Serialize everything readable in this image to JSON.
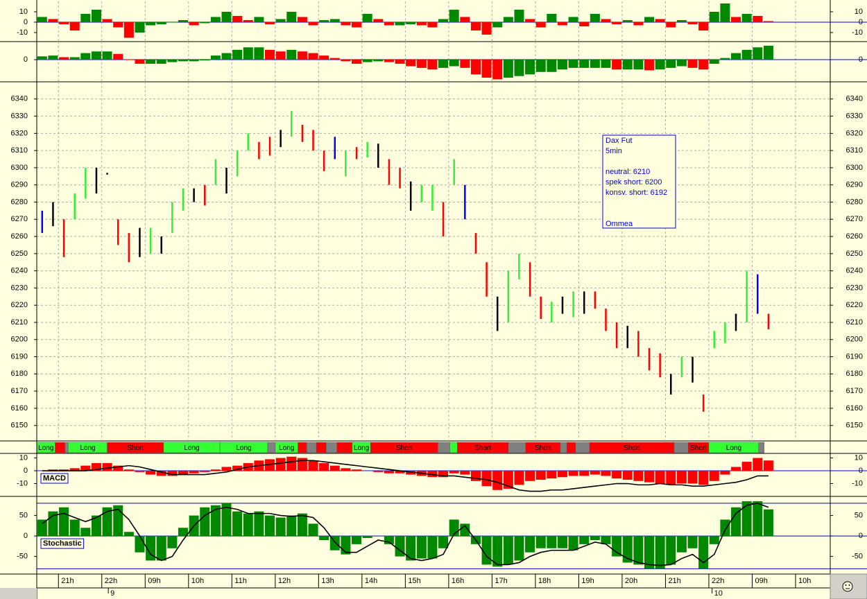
{
  "chart_data": [
    {
      "type": "histogram",
      "ylim": [
        -18.7,
        20
      ],
      "yticks": [
        10,
        0,
        -10
      ],
      "ref_lines": [
        0
      ],
      "grid": true,
      "up_color": "#008800",
      "down_color": "#ff0000",
      "values": [
        5,
        3,
        -2,
        -8,
        8,
        12,
        3,
        -5,
        -15,
        -10,
        -3,
        -2,
        0,
        2,
        -3,
        -1,
        5,
        10,
        6,
        2,
        5,
        -2,
        3,
        10,
        5,
        -3,
        2,
        3,
        -3,
        -5,
        8,
        3,
        -3,
        -3,
        -2,
        -3,
        -5,
        3,
        12,
        5,
        -8,
        -12,
        -5,
        5,
        12,
        3,
        -5,
        8,
        -3,
        5,
        -4,
        8,
        3,
        -2,
        2,
        -3,
        5,
        3,
        -5,
        2,
        -2,
        -8,
        10,
        18,
        5,
        8,
        6,
        1
      ]
    },
    {
      "type": "histogram",
      "ylim": [
        -27,
        22
      ],
      "yticks": [
        0
      ],
      "ref_lines": [
        0
      ],
      "grid": true,
      "up_color": "#008800",
      "down_color": "#ff0000",
      "values": [
        4,
        5,
        3,
        3,
        8,
        10,
        10,
        7,
        0,
        -5,
        -5,
        -5,
        -3,
        -2,
        -2,
        -1,
        5,
        8,
        12,
        15,
        15,
        12,
        10,
        12,
        10,
        8,
        5,
        2,
        -2,
        -5,
        -3,
        -2,
        -3,
        -5,
        -8,
        -10,
        -12,
        -10,
        -8,
        -10,
        -18,
        -22,
        -24,
        -22,
        -20,
        -18,
        -15,
        -15,
        -12,
        -10,
        -10,
        -10,
        -10,
        -12,
        -12,
        -12,
        -13,
        -12,
        -10,
        -8,
        -10,
        -12,
        -5,
        2,
        8,
        12,
        15,
        17
      ]
    },
    {
      "type": "ohlc",
      "ylim": [
        6141,
        6350
      ],
      "yticks": [
        6150,
        6160,
        6170,
        6180,
        6190,
        6200,
        6210,
        6220,
        6230,
        6240,
        6250,
        6260,
        6270,
        6280,
        6290,
        6300,
        6310,
        6320,
        6330,
        6340
      ],
      "grid": true,
      "highs": [
        6275,
        6280,
        6270,
        6285,
        6300,
        6300,
        6297,
        6270,
        6262,
        6265,
        6265,
        6260,
        6280,
        6288,
        6288,
        6290,
        6305,
        6300,
        6310,
        6320,
        6315,
        6318,
        6322,
        6333,
        6325,
        6322,
        6310,
        6318,
        6310,
        6312,
        6315,
        6314,
        6305,
        6300,
        6292,
        6290,
        6290,
        6280,
        6305,
        6290,
        6262,
        6245,
        6225,
        6240,
        6250,
        6245,
        6225,
        6222,
        6225,
        6228,
        6228,
        6228,
        6218,
        6210,
        6208,
        6205,
        6195,
        6192,
        6180,
        6190,
        6190,
        6168,
        6205,
        6210,
        6215,
        6240,
        6238,
        6215
      ],
      "lows": [
        6262,
        6266,
        6248,
        6270,
        6282,
        6285,
        6296,
        6255,
        6245,
        6248,
        6250,
        6250,
        6262,
        6275,
        6280,
        6278,
        6290,
        6285,
        6295,
        6310,
        6305,
        6307,
        6312,
        6318,
        6315,
        6310,
        6298,
        6305,
        6295,
        6305,
        6306,
        6300,
        6290,
        6288,
        6275,
        6280,
        6275,
        6260,
        6290,
        6270,
        6250,
        6225,
        6205,
        6210,
        6235,
        6225,
        6212,
        6210,
        6215,
        6213,
        6215,
        6218,
        6205,
        6195,
        6195,
        6190,
        6182,
        6178,
        6168,
        6178,
        6175,
        6158,
        6195,
        6198,
        6205,
        6210,
        6215,
        6206
      ],
      "bar_colors": [
        "#0000ff",
        "#000000",
        "#ff0000",
        "#33ee33",
        "#33ee33",
        "#000000",
        "#000000",
        "#ff0000",
        "#ff0000",
        "#000000",
        "#33ee33",
        "#000000",
        "#33ee33",
        "#33ee33",
        "#000000",
        "#ff0000",
        "#33ee33",
        "#000000",
        "#33ee33",
        "#33ee33",
        "#ff0000",
        "#ff0000",
        "#000000",
        "#33ee33",
        "#ff0000",
        "#ff0000",
        "#ff0000",
        "#0000ff",
        "#33ee33",
        "#ff0000",
        "#33ee33",
        "#000000",
        "#ff0000",
        "#ff0000",
        "#000000",
        "#33ee33",
        "#33ee33",
        "#ff0000",
        "#33ee33",
        "#0000ff",
        "#ff0000",
        "#ff0000",
        "#000000",
        "#33ee33",
        "#33ee33",
        "#ff0000",
        "#ff0000",
        "#33ee33",
        "#000000",
        "#33ee33",
        "#000000",
        "#ff0000",
        "#ff0000",
        "#ff0000",
        "#000000",
        "#ff0000",
        "#ff0000",
        "#ff0000",
        "#000000",
        "#33ee33",
        "#000000",
        "#ff0000",
        "#33ee33",
        "#33ee33",
        "#000000",
        "#33ee33",
        "#0000ff",
        "#ff0000"
      ],
      "annotation": [
        "Dax Fut",
        "5min",
        "neutral: 6210",
        "spek short: 6200",
        "konsv. short: 6192",
        "Ommea"
      ]
    },
    {
      "type": "signal",
      "segments": [
        {
          "start": 0,
          "end": 1.7,
          "color": "#33ff33",
          "label": "Long"
        },
        {
          "start": 1.7,
          "end": 2.6,
          "color": "#ff0000"
        },
        {
          "start": 2.6,
          "end": 2.9,
          "color": "#808080"
        },
        {
          "start": 2.9,
          "end": 6.5,
          "color": "#33ff33",
          "label": "Long"
        },
        {
          "start": 6.5,
          "end": 11.7,
          "color": "#ff0000",
          "label": "Short"
        },
        {
          "start": 11.7,
          "end": 16.9,
          "color": "#33ff33",
          "label": "Long"
        },
        {
          "start": 16.9,
          "end": 21.3,
          "color": "#33ff33",
          "label": "Long"
        },
        {
          "start": 21.3,
          "end": 22.0,
          "color": "#808080"
        },
        {
          "start": 22.0,
          "end": 24.1,
          "color": "#33ff33",
          "label": "Long"
        },
        {
          "start": 24.1,
          "end": 24.9,
          "color": "#ff0000"
        },
        {
          "start": 24.9,
          "end": 25.8,
          "color": "#808080"
        },
        {
          "start": 25.8,
          "end": 26.7,
          "color": "#ff0000"
        },
        {
          "start": 26.7,
          "end": 27.7,
          "color": "#808080"
        },
        {
          "start": 27.7,
          "end": 29.1,
          "color": "#ff0000"
        },
        {
          "start": 29.1,
          "end": 30.8,
          "color": "#33ff33",
          "label": "Long"
        },
        {
          "start": 30.8,
          "end": 37.0,
          "color": "#ff0000",
          "label": "Short"
        },
        {
          "start": 37.0,
          "end": 38.1,
          "color": "#808080"
        },
        {
          "start": 38.1,
          "end": 38.8,
          "color": "#33ff33"
        },
        {
          "start": 38.8,
          "end": 43.5,
          "color": "#ff0000",
          "label": "Short"
        },
        {
          "start": 43.5,
          "end": 45.1,
          "color": "#808080"
        },
        {
          "start": 45.1,
          "end": 48.3,
          "color": "#ff0000",
          "label": "Short"
        },
        {
          "start": 48.3,
          "end": 48.9,
          "color": "#808080"
        },
        {
          "start": 48.9,
          "end": 49.7,
          "color": "#ff0000"
        },
        {
          "start": 49.7,
          "end": 51.0,
          "color": "#808080"
        },
        {
          "start": 51.0,
          "end": 58.8,
          "color": "#ff0000",
          "label": "Short"
        },
        {
          "start": 58.8,
          "end": 60.1,
          "color": "#808080"
        },
        {
          "start": 60.1,
          "end": 62.0,
          "color": "#ff0000",
          "label": "Short"
        },
        {
          "start": 62.0,
          "end": 66.6,
          "color": "#33ff33",
          "label": "Long"
        },
        {
          "start": 66.6,
          "end": 67.1,
          "color": "#808080"
        }
      ]
    },
    {
      "type": "histogram",
      "label": "MACD",
      "ylim": [
        -20,
        13
      ],
      "yticks": [
        10,
        0,
        -10
      ],
      "ref_lines": [
        0
      ],
      "up_color": "#ff0000",
      "down_color": "#ff0000",
      "values": [
        0,
        1,
        1,
        2,
        4,
        6,
        6,
        4,
        1,
        -1,
        -3,
        -4,
        -4,
        -3,
        -2,
        -1,
        1,
        3,
        4,
        6,
        8,
        9,
        10,
        11,
        10,
        8,
        6,
        4,
        2,
        1,
        0,
        -1,
        -2,
        -2,
        -3,
        -4,
        -5,
        -5,
        -2,
        -3,
        -8,
        -12,
        -15,
        -14,
        -11,
        -8,
        -7,
        -6,
        -5,
        -4,
        -4,
        -3,
        -4,
        -6,
        -7,
        -8,
        -9,
        -10,
        -11,
        -10,
        -10,
        -11,
        -8,
        -3,
        3,
        7,
        10,
        8
      ],
      "line": [
        0,
        0,
        0,
        0,
        0,
        1,
        2,
        3,
        4,
        3,
        1,
        -1,
        -3,
        -3,
        -3,
        -3,
        -2,
        -1,
        1,
        3,
        4,
        5,
        6,
        7,
        8,
        8,
        7,
        6,
        5,
        4,
        3,
        2,
        1,
        0,
        -1,
        -2,
        -3,
        -4,
        -4,
        -5,
        -6,
        -7,
        -9,
        -12,
        -15,
        -16,
        -16,
        -15,
        -15,
        -14,
        -13,
        -12,
        -11,
        -10,
        -10,
        -11,
        -11,
        -10,
        -11,
        -11,
        -12,
        -12,
        -11,
        -10,
        -9,
        -7,
        -4,
        -4
      ]
    },
    {
      "type": "histogram",
      "label": "Stochastic",
      "ylim": [
        -93,
        95
      ],
      "yticks": [
        50,
        0,
        -50
      ],
      "ref_lines": [
        80,
        0,
        -80
      ],
      "up_color": "#008800",
      "down_color": "#008800",
      "values": [
        40,
        60,
        70,
        40,
        20,
        50,
        70,
        75,
        10,
        -40,
        -60,
        -60,
        -30,
        20,
        50,
        70,
        75,
        80,
        60,
        55,
        60,
        50,
        45,
        50,
        55,
        30,
        -10,
        -35,
        -45,
        -20,
        -5,
        0,
        -20,
        -50,
        -60,
        -55,
        -55,
        -30,
        40,
        30,
        -20,
        -70,
        -75,
        -70,
        -60,
        -40,
        -30,
        -30,
        -30,
        -35,
        -20,
        -10,
        -20,
        -50,
        -65,
        -70,
        -80,
        -80,
        -70,
        -40,
        -30,
        -80,
        -20,
        40,
        70,
        85,
        85,
        65
      ],
      "line": [
        30,
        50,
        55,
        45,
        35,
        45,
        60,
        65,
        40,
        0,
        -45,
        -60,
        -50,
        -10,
        25,
        50,
        65,
        70,
        65,
        55,
        55,
        55,
        50,
        48,
        50,
        45,
        20,
        -15,
        -40,
        -40,
        -25,
        -10,
        -15,
        -35,
        -55,
        -60,
        -55,
        -45,
        5,
        25,
        -10,
        -50,
        -70,
        -70,
        -65,
        -50,
        -40,
        -35,
        -35,
        -35,
        -25,
        -15,
        -20,
        -40,
        -55,
        -65,
        -70,
        -72,
        -70,
        -55,
        -45,
        -65,
        -45,
        15,
        55,
        75,
        80,
        70
      ]
    }
  ],
  "x_axis": {
    "xlim": [
      0,
      73.2
    ],
    "xticks": [
      {
        "value": 2,
        "label": "21h"
      },
      {
        "value": 6,
        "label": "22h"
      },
      {
        "value": 10,
        "label": "09h"
      },
      {
        "value": 14,
        "label": "10h"
      },
      {
        "value": 18,
        "label": "11h"
      },
      {
        "value": 22,
        "label": "12h"
      },
      {
        "value": 26,
        "label": "13h"
      },
      {
        "value": 30,
        "label": "14h"
      },
      {
        "value": 34,
        "label": "15h"
      },
      {
        "value": 38,
        "label": "16h"
      },
      {
        "value": 42,
        "label": "17h"
      },
      {
        "value": 46,
        "label": "18h"
      },
      {
        "value": 50,
        "label": "19h"
      },
      {
        "value": 54,
        "label": "20h"
      },
      {
        "value": 58,
        "label": "21h"
      },
      {
        "value": 62,
        "label": "22h"
      },
      {
        "value": 66,
        "label": "09h"
      },
      {
        "value": 70,
        "label": "10h"
      }
    ],
    "dates": [
      {
        "value": 6.6,
        "label": "9"
      },
      {
        "value": 62.3,
        "label": "10"
      }
    ]
  }
}
